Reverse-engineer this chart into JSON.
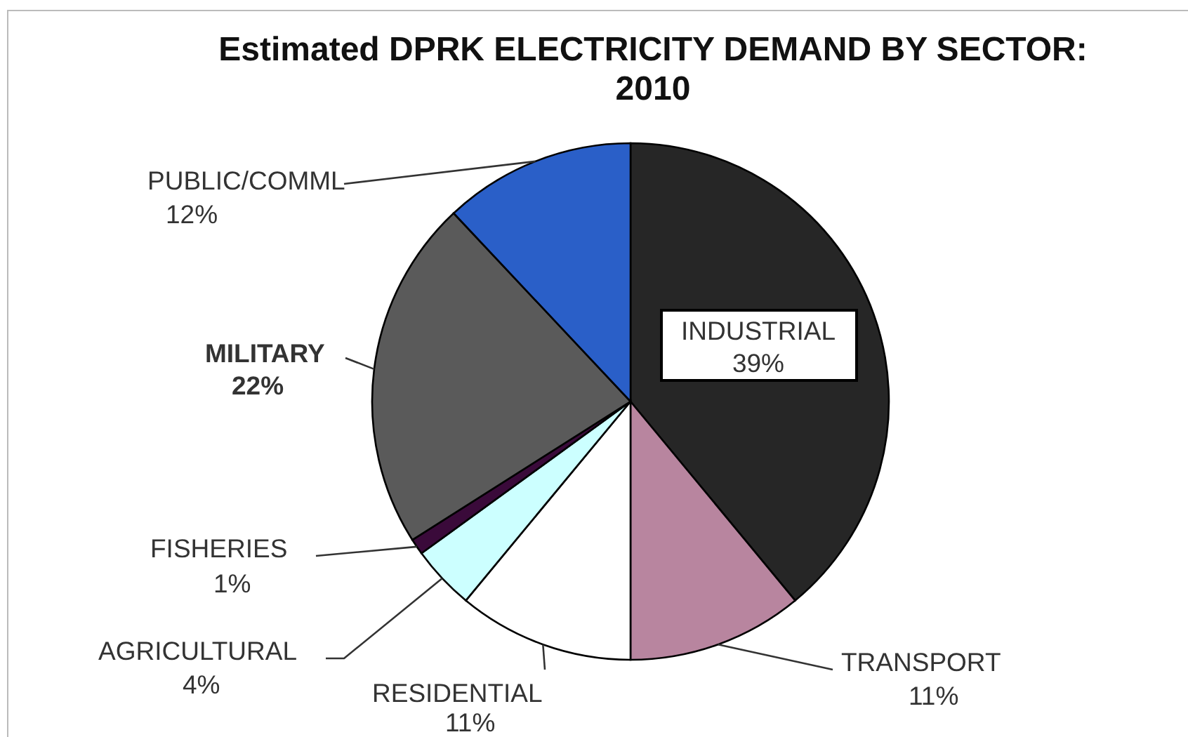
{
  "chart_data": {
    "type": "pie",
    "title": "Estimated DPRK ELECTRICITY DEMAND BY SECTOR: 2010",
    "categories": [
      "INDUSTRIAL",
      "TRANSPORT",
      "RESIDENTIAL",
      "AGRICULTURAL",
      "FISHERIES",
      "MILITARY",
      "PUBLIC/COMML"
    ],
    "values": [
      39,
      11,
      11,
      4,
      1,
      22,
      12
    ],
    "value_labels": [
      "39%",
      "11%",
      "11%",
      "4%",
      "1%",
      "22%",
      "12%"
    ],
    "colors": [
      "#262626",
      "#b8859f",
      "#ffffff",
      "#ccffff",
      "#3a0a3a",
      "#5a5a5a",
      "#2a5fc8"
    ]
  }
}
